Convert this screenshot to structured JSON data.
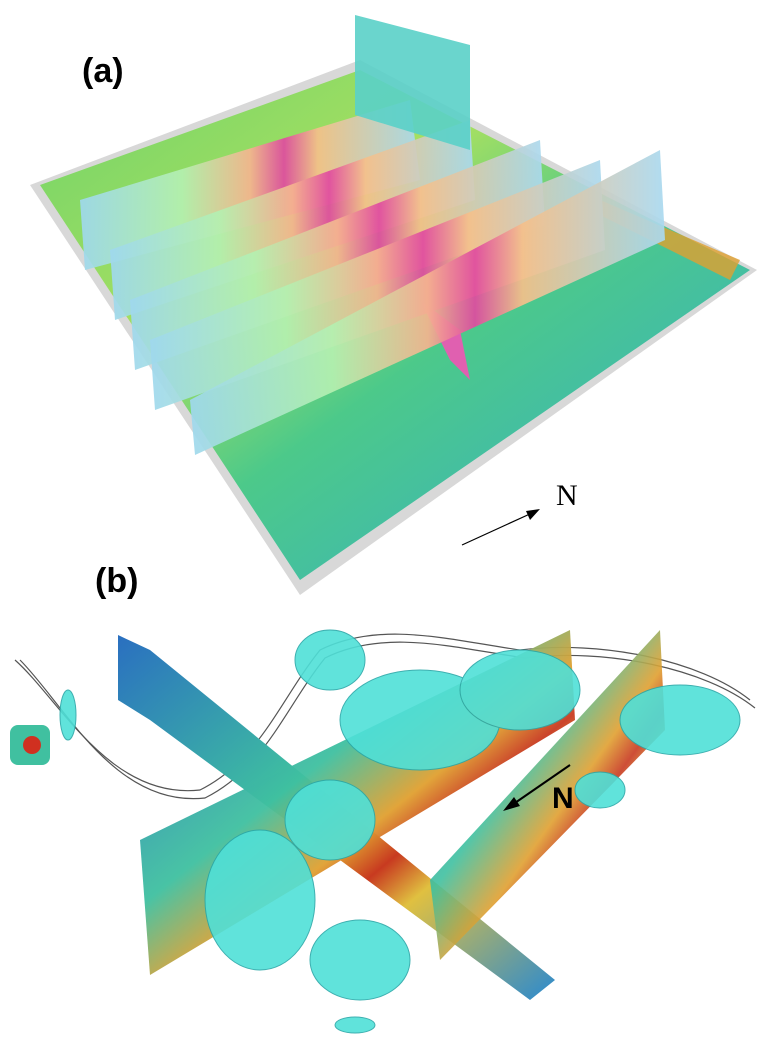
{
  "panels": [
    {
      "label": "(a)",
      "north": "N"
    },
    {
      "label": "(b)",
      "north": "N"
    }
  ]
}
